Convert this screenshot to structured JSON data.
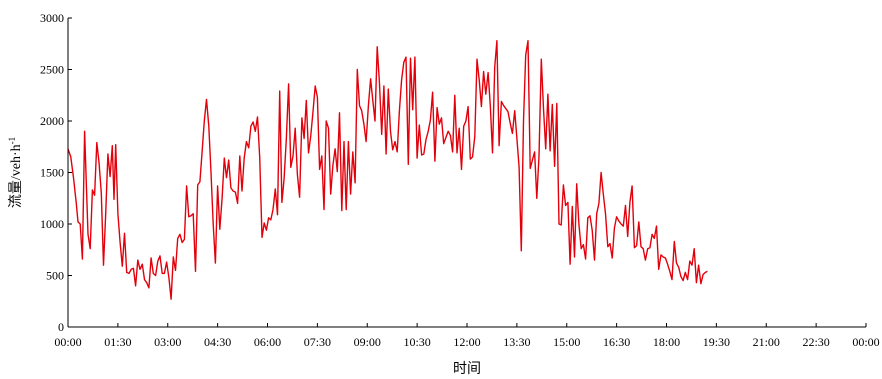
{
  "chart_data": {
    "type": "line",
    "xlabel": "时间",
    "ylabel": {
      "main": "流量/veh·h",
      "superscript": "-1"
    },
    "xlim": [
      0,
      1440
    ],
    "ylim": [
      0,
      3000
    ],
    "y_ticks": [
      0,
      500,
      1000,
      1500,
      2000,
      2500,
      3000
    ],
    "x_ticks": [
      {
        "minute": 0,
        "label": "00:00"
      },
      {
        "minute": 90,
        "label": "01:30"
      },
      {
        "minute": 180,
        "label": "03:00"
      },
      {
        "minute": 270,
        "label": "04:30"
      },
      {
        "minute": 360,
        "label": "06:00"
      },
      {
        "minute": 450,
        "label": "07:30"
      },
      {
        "minute": 540,
        "label": "09:00"
      },
      {
        "minute": 630,
        "label": "10:30"
      },
      {
        "minute": 720,
        "label": "12:00"
      },
      {
        "minute": 810,
        "label": "13:30"
      },
      {
        "minute": 900,
        "label": "15:00"
      },
      {
        "minute": 990,
        "label": "16:30"
      },
      {
        "minute": 1080,
        "label": "18:00"
      },
      {
        "minute": 1170,
        "label": "19:30"
      },
      {
        "minute": 1260,
        "label": "21:00"
      },
      {
        "minute": 1350,
        "label": "22:30"
      },
      {
        "minute": 1440,
        "label": "00:00"
      }
    ],
    "series": [
      {
        "color": "#e3000b",
        "points": [
          [
            0,
            1730
          ],
          [
            5,
            1650
          ],
          [
            10,
            1450
          ],
          [
            15,
            1200
          ],
          [
            18,
            1020
          ],
          [
            22,
            1000
          ],
          [
            26,
            660
          ],
          [
            30,
            1900
          ],
          [
            36,
            900
          ],
          [
            40,
            760
          ],
          [
            44,
            1330
          ],
          [
            48,
            1280
          ],
          [
            52,
            1790
          ],
          [
            56,
            1600
          ],
          [
            60,
            1300
          ],
          [
            64,
            600
          ],
          [
            68,
            1100
          ],
          [
            72,
            1680
          ],
          [
            76,
            1460
          ],
          [
            80,
            1760
          ],
          [
            83,
            1240
          ],
          [
            86,
            1770
          ],
          [
            90,
            1100
          ],
          [
            94,
            820
          ],
          [
            98,
            590
          ],
          [
            102,
            910
          ],
          [
            106,
            530
          ],
          [
            110,
            520
          ],
          [
            114,
            560
          ],
          [
            118,
            570
          ],
          [
            122,
            400
          ],
          [
            126,
            650
          ],
          [
            130,
            560
          ],
          [
            134,
            610
          ],
          [
            138,
            460
          ],
          [
            142,
            430
          ],
          [
            146,
            380
          ],
          [
            150,
            670
          ],
          [
            154,
            520
          ],
          [
            158,
            500
          ],
          [
            162,
            640
          ],
          [
            166,
            690
          ],
          [
            170,
            520
          ],
          [
            174,
            520
          ],
          [
            178,
            630
          ],
          [
            182,
            480
          ],
          [
            186,
            270
          ],
          [
            190,
            680
          ],
          [
            194,
            550
          ],
          [
            198,
            860
          ],
          [
            202,
            900
          ],
          [
            206,
            820
          ],
          [
            210,
            850
          ],
          [
            214,
            1370
          ],
          [
            218,
            1070
          ],
          [
            222,
            1080
          ],
          [
            226,
            1100
          ],
          [
            230,
            540
          ],
          [
            234,
            1380
          ],
          [
            238,
            1410
          ],
          [
            242,
            1700
          ],
          [
            246,
            2000
          ],
          [
            250,
            2210
          ],
          [
            254,
            1950
          ],
          [
            258,
            1500
          ],
          [
            262,
            1000
          ],
          [
            266,
            620
          ],
          [
            270,
            1370
          ],
          [
            274,
            950
          ],
          [
            278,
            1250
          ],
          [
            282,
            1640
          ],
          [
            286,
            1450
          ],
          [
            290,
            1620
          ],
          [
            294,
            1350
          ],
          [
            298,
            1320
          ],
          [
            302,
            1310
          ],
          [
            306,
            1200
          ],
          [
            310,
            1660
          ],
          [
            314,
            1320
          ],
          [
            318,
            1640
          ],
          [
            322,
            1800
          ],
          [
            326,
            1740
          ],
          [
            330,
            1950
          ],
          [
            334,
            1990
          ],
          [
            338,
            1900
          ],
          [
            342,
            2040
          ],
          [
            346,
            1650
          ],
          [
            350,
            870
          ],
          [
            354,
            1010
          ],
          [
            358,
            940
          ],
          [
            362,
            1060
          ],
          [
            366,
            1040
          ],
          [
            370,
            1140
          ],
          [
            374,
            1340
          ],
          [
            378,
            1090
          ],
          [
            382,
            2290
          ],
          [
            386,
            1210
          ],
          [
            390,
            1440
          ],
          [
            394,
            1820
          ],
          [
            398,
            2360
          ],
          [
            402,
            1550
          ],
          [
            406,
            1660
          ],
          [
            410,
            1930
          ],
          [
            414,
            1480
          ],
          [
            418,
            1260
          ],
          [
            422,
            2030
          ],
          [
            426,
            1830
          ],
          [
            430,
            2200
          ],
          [
            434,
            1690
          ],
          [
            438,
            1850
          ],
          [
            442,
            2080
          ],
          [
            446,
            2340
          ],
          [
            450,
            2230
          ],
          [
            454,
            1530
          ],
          [
            458,
            1660
          ],
          [
            462,
            1140
          ],
          [
            466,
            2000
          ],
          [
            470,
            1930
          ],
          [
            474,
            1290
          ],
          [
            478,
            1570
          ],
          [
            482,
            1730
          ],
          [
            486,
            1510
          ],
          [
            490,
            2080
          ],
          [
            494,
            1130
          ],
          [
            498,
            1800
          ],
          [
            502,
            1140
          ],
          [
            506,
            1800
          ],
          [
            510,
            1290
          ],
          [
            514,
            1700
          ],
          [
            518,
            1400
          ],
          [
            522,
            2500
          ],
          [
            526,
            2150
          ],
          [
            530,
            2100
          ],
          [
            534,
            1970
          ],
          [
            538,
            1800
          ],
          [
            542,
            2150
          ],
          [
            546,
            2410
          ],
          [
            550,
            2200
          ],
          [
            554,
            2000
          ],
          [
            558,
            2720
          ],
          [
            562,
            2380
          ],
          [
            566,
            1870
          ],
          [
            570,
            2340
          ],
          [
            574,
            1680
          ],
          [
            578,
            2310
          ],
          [
            582,
            1900
          ],
          [
            586,
            1720
          ],
          [
            590,
            1800
          ],
          [
            594,
            1700
          ],
          [
            598,
            2100
          ],
          [
            602,
            2400
          ],
          [
            606,
            2570
          ],
          [
            610,
            2620
          ],
          [
            614,
            1580
          ],
          [
            618,
            2610
          ],
          [
            622,
            2110
          ],
          [
            626,
            2620
          ],
          [
            630,
            1640
          ],
          [
            634,
            1960
          ],
          [
            638,
            1670
          ],
          [
            642,
            1680
          ],
          [
            646,
            1820
          ],
          [
            650,
            1900
          ],
          [
            654,
            2010
          ],
          [
            658,
            2280
          ],
          [
            662,
            1610
          ],
          [
            666,
            2130
          ],
          [
            670,
            1970
          ],
          [
            674,
            2030
          ],
          [
            678,
            1780
          ],
          [
            682,
            1840
          ],
          [
            686,
            1900
          ],
          [
            690,
            1860
          ],
          [
            694,
            1700
          ],
          [
            698,
            2250
          ],
          [
            702,
            1690
          ],
          [
            706,
            1930
          ],
          [
            710,
            1530
          ],
          [
            714,
            1950
          ],
          [
            718,
            2000
          ],
          [
            722,
            2140
          ],
          [
            726,
            1630
          ],
          [
            730,
            1650
          ],
          [
            734,
            1850
          ],
          [
            738,
            2600
          ],
          [
            742,
            2400
          ],
          [
            746,
            2140
          ],
          [
            750,
            2480
          ],
          [
            754,
            2260
          ],
          [
            758,
            2470
          ],
          [
            762,
            2150
          ],
          [
            766,
            1690
          ],
          [
            770,
            2520
          ],
          [
            774,
            2780
          ],
          [
            778,
            1760
          ],
          [
            782,
            2190
          ],
          [
            786,
            2150
          ],
          [
            790,
            2120
          ],
          [
            794,
            2090
          ],
          [
            798,
            1980
          ],
          [
            802,
            1880
          ],
          [
            806,
            2100
          ],
          [
            810,
            1830
          ],
          [
            814,
            1550
          ],
          [
            818,
            740
          ],
          [
            822,
            2000
          ],
          [
            826,
            2640
          ],
          [
            830,
            2780
          ],
          [
            834,
            1540
          ],
          [
            838,
            1620
          ],
          [
            842,
            1700
          ],
          [
            846,
            1250
          ],
          [
            850,
            1660
          ],
          [
            854,
            2600
          ],
          [
            858,
            2120
          ],
          [
            862,
            1730
          ],
          [
            866,
            2260
          ],
          [
            870,
            1710
          ],
          [
            874,
            2160
          ],
          [
            878,
            1560
          ],
          [
            882,
            2170
          ],
          [
            886,
            1000
          ],
          [
            890,
            990
          ],
          [
            894,
            1380
          ],
          [
            898,
            1180
          ],
          [
            902,
            1210
          ],
          [
            906,
            610
          ],
          [
            910,
            1170
          ],
          [
            914,
            680
          ],
          [
            918,
            1390
          ],
          [
            922,
            1000
          ],
          [
            926,
            760
          ],
          [
            930,
            800
          ],
          [
            934,
            660
          ],
          [
            938,
            1060
          ],
          [
            942,
            1080
          ],
          [
            946,
            940
          ],
          [
            950,
            650
          ],
          [
            954,
            1100
          ],
          [
            958,
            1200
          ],
          [
            962,
            1500
          ],
          [
            966,
            1290
          ],
          [
            970,
            1100
          ],
          [
            974,
            780
          ],
          [
            978,
            810
          ],
          [
            982,
            670
          ],
          [
            986,
            960
          ],
          [
            990,
            1070
          ],
          [
            994,
            1030
          ],
          [
            998,
            1000
          ],
          [
            1002,
            980
          ],
          [
            1006,
            1180
          ],
          [
            1010,
            880
          ],
          [
            1014,
            1210
          ],
          [
            1018,
            1370
          ],
          [
            1022,
            770
          ],
          [
            1026,
            790
          ],
          [
            1030,
            1020
          ],
          [
            1034,
            780
          ],
          [
            1038,
            760
          ],
          [
            1042,
            650
          ],
          [
            1046,
            760
          ],
          [
            1050,
            770
          ],
          [
            1054,
            900
          ],
          [
            1058,
            860
          ],
          [
            1062,
            980
          ],
          [
            1066,
            560
          ],
          [
            1070,
            700
          ],
          [
            1074,
            680
          ],
          [
            1078,
            670
          ],
          [
            1082,
            610
          ],
          [
            1086,
            540
          ],
          [
            1090,
            460
          ],
          [
            1094,
            830
          ],
          [
            1098,
            620
          ],
          [
            1102,
            580
          ],
          [
            1106,
            490
          ],
          [
            1110,
            450
          ],
          [
            1114,
            530
          ],
          [
            1118,
            460
          ],
          [
            1122,
            640
          ],
          [
            1126,
            600
          ],
          [
            1130,
            760
          ],
          [
            1134,
            430
          ],
          [
            1138,
            600
          ],
          [
            1142,
            420
          ],
          [
            1146,
            510
          ],
          [
            1150,
            530
          ],
          [
            1154,
            540
          ]
        ]
      }
    ]
  }
}
